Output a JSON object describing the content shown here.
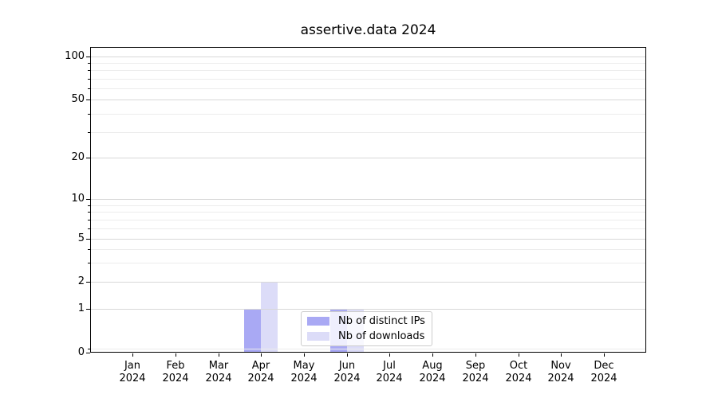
{
  "chart_data": {
    "type": "bar",
    "title": "assertive.data 2024",
    "categories": [
      "Jan",
      "Feb",
      "Mar",
      "Apr",
      "May",
      "Jun",
      "Jul",
      "Aug",
      "Sep",
      "Oct",
      "Nov",
      "Dec"
    ],
    "x_tick_year": "2024",
    "series": [
      {
        "name": "Nb of distinct IPs",
        "color": "#a9a9f4",
        "values": [
          0,
          0,
          0,
          1,
          0,
          1,
          0,
          0,
          0,
          0,
          0,
          0
        ]
      },
      {
        "name": "Nb of downloads",
        "color": "#dcdcf8",
        "values": [
          0,
          0,
          0,
          2,
          0,
          1,
          0,
          0,
          0,
          0,
          0,
          0
        ]
      }
    ],
    "y_axis": {
      "scale": "symlog",
      "ticks": [
        0,
        1,
        2,
        5,
        10,
        20,
        50,
        100
      ],
      "minor_gridlines": [
        0.1,
        3,
        4,
        6,
        7,
        8,
        9,
        30,
        40,
        60,
        70,
        80,
        90
      ],
      "ylim": [
        0,
        110
      ]
    },
    "legend": {
      "position": "inside lower-center",
      "entries": [
        "Nb of distinct IPs",
        "Nb of downloads"
      ]
    },
    "grid": "horizontal major + minor",
    "xlabel": "",
    "ylabel": ""
  },
  "colors": {
    "major_grid": "#d8d8d8",
    "minor_grid": "#ececec",
    "spine": "#000000",
    "background": "#ffffff",
    "bar_distinct_ips": "#a9a9f4",
    "bar_downloads": "#dcdcf8"
  }
}
